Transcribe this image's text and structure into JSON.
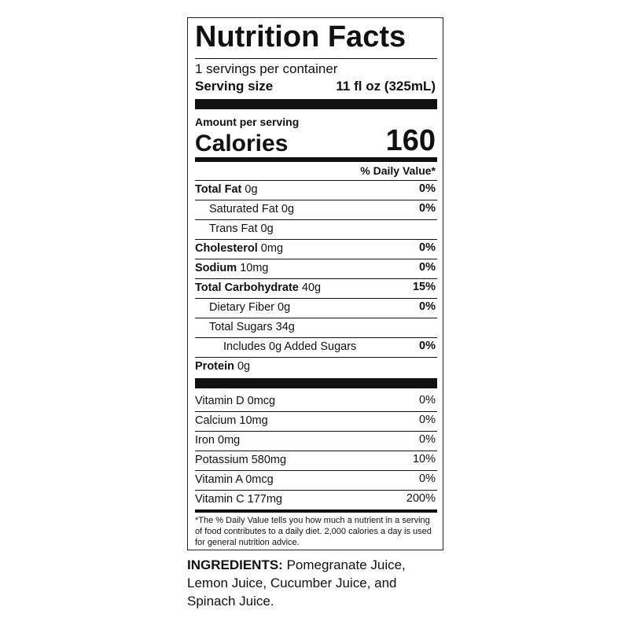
{
  "label": {
    "title": "Nutrition Facts",
    "servings": "1 servings per container",
    "serving_size_label": "Serving size",
    "serving_size": "11 fl oz (325mL)",
    "amount_per_serving": "Amount per serving",
    "calories_label": "Calories",
    "calories": "160",
    "daily_value_header": "% Daily Value*",
    "nutrients": [
      {
        "name": "Total Fat",
        "amount": "0g",
        "dv": "0%",
        "sub": [
          {
            "name": "Saturated Fat",
            "amount": "0g",
            "dv": "0%"
          },
          {
            "name": "Trans Fat",
            "amount": "0g"
          }
        ]
      },
      {
        "name": "Cholesterol",
        "amount": "0mg",
        "dv": "0%"
      },
      {
        "name": "Sodium",
        "amount": "10mg",
        "dv": "0%"
      },
      {
        "name": "Total Carbohydrate",
        "amount": "40g",
        "dv": "15%",
        "sub": [
          {
            "name": "Dietary Fiber",
            "amount": "0g",
            "dv": "0%"
          },
          {
            "name": "Total Sugars",
            "amount": "34g",
            "sub": [
              {
                "name": "Includes 0g Added Sugars",
                "dv": "0%"
              }
            ]
          }
        ]
      },
      {
        "name": "Protein",
        "amount": "0g"
      }
    ],
    "vitamins": [
      {
        "name": "Vitamin D",
        "amount": "0mcg",
        "dv": "0%"
      },
      {
        "name": "Calcium",
        "amount": "10mg",
        "dv": "0%"
      },
      {
        "name": "Iron",
        "amount": "0mg",
        "dv": "0%"
      },
      {
        "name": "Potassium",
        "amount": "580mg",
        "dv": "10%"
      },
      {
        "name": "Vitamin A",
        "amount": "0mcg",
        "dv": "0%"
      },
      {
        "name": "Vitamin C",
        "amount": "177mg",
        "dv": "200%"
      }
    ],
    "footnote": "*The % Daily Value tells you how much a nutrient in a serving of food contributes to a daily diet. 2,000 calories a day is used for general nutrition advice."
  },
  "ingredients": {
    "label": "INGREDIENTS:",
    "text": "Pomegranate Juice, Lemon Juice, Cucumber Juice, and Spinach Juice."
  }
}
